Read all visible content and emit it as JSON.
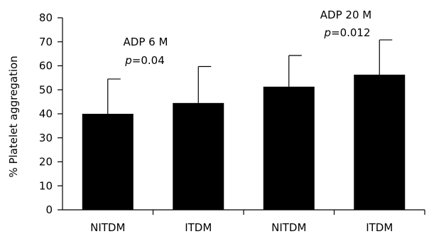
{
  "chart_data": {
    "type": "bar",
    "categories": [
      "NITDM",
      "ITDM",
      "NITDM",
      "ITDM"
    ],
    "values": [
      40,
      44.5,
      51.3,
      56.3
    ],
    "error_plus": [
      14.5,
      15.2,
      13,
      14.5
    ],
    "ylabel": "% Platelet aggregation",
    "xlabel": "",
    "ylim": [
      0,
      80
    ],
    "yticks": [
      0,
      10,
      20,
      30,
      40,
      50,
      60,
      70,
      80
    ],
    "bar_color": "#000000",
    "grid": false,
    "annotations": [
      {
        "line1": "ADP 6 M",
        "p_symbol": "p",
        "p_value": "=0.04"
      },
      {
        "line1": "ADP 20 M",
        "p_symbol": "p",
        "p_value": "=0.012"
      }
    ]
  }
}
